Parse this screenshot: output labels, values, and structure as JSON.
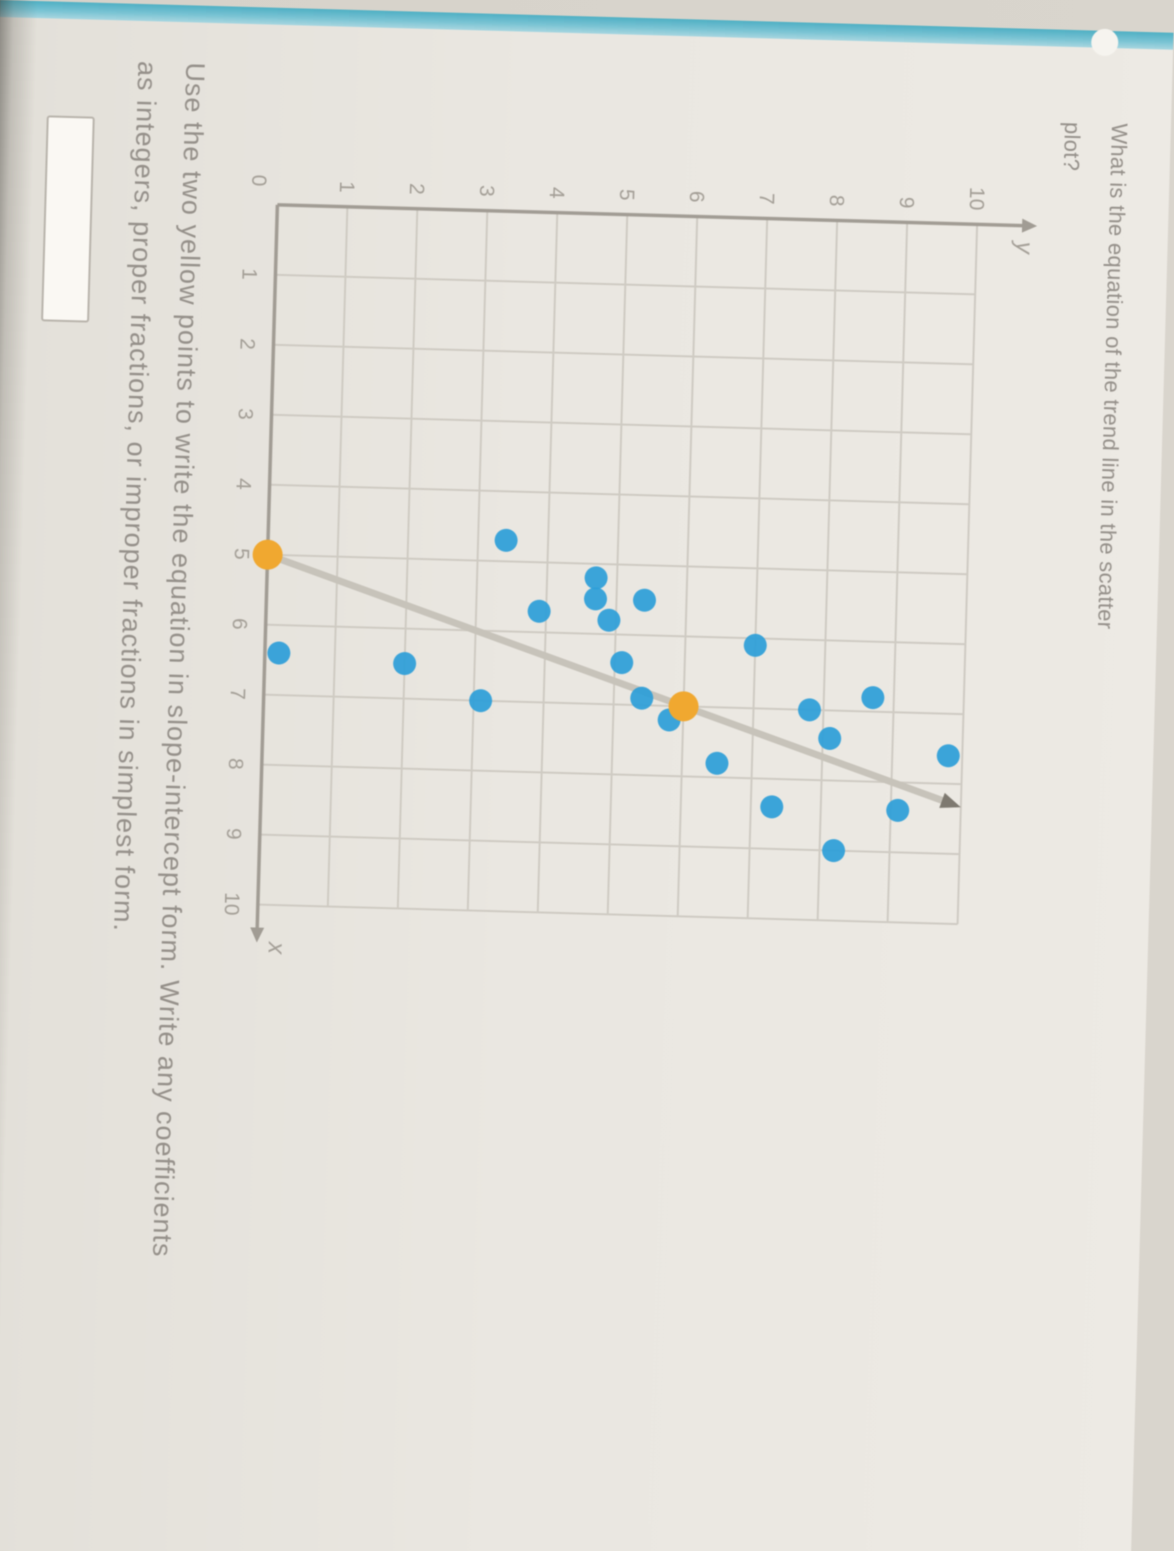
{
  "screen": {
    "edge_strip_color": "#58b4c8",
    "corner_dot_color": "#f6f4ef",
    "background_color": "#eae7e1"
  },
  "question": {
    "text": "What is the equation of the trend line in the scatter plot?"
  },
  "instructions": {
    "line1": "Use the two yellow points to write the equation in slope-intercept form. Write any coefficients",
    "line2": "as integers, proper fractions, or improper fractions in simplest form."
  },
  "answer": {
    "value": ""
  },
  "chart_data": {
    "type": "scatter",
    "title": "",
    "xlabel": "x",
    "ylabel": "y",
    "origin_label": "0",
    "xlim": [
      0,
      10
    ],
    "ylim": [
      0,
      10
    ],
    "grid": true,
    "x_ticks": [
      1,
      2,
      3,
      4,
      5,
      6,
      7,
      8,
      9,
      10
    ],
    "y_ticks": [
      1,
      2,
      3,
      4,
      5,
      6,
      7,
      8,
      9,
      10
    ],
    "points": [
      [
        6.4,
        0.2
      ],
      [
        6.5,
        2.0
      ],
      [
        7.0,
        3.1
      ],
      [
        5.7,
        3.9
      ],
      [
        5.2,
        4.7
      ],
      [
        5.5,
        4.7
      ],
      [
        5.8,
        4.9
      ],
      [
        5.5,
        5.4
      ],
      [
        6.4,
        5.1
      ],
      [
        6.9,
        5.4
      ],
      [
        7.2,
        5.8
      ],
      [
        4.7,
        3.4
      ],
      [
        6.1,
        7.0
      ],
      [
        7.0,
        7.8
      ],
      [
        7.8,
        6.5
      ],
      [
        8.4,
        7.3
      ],
      [
        7.6,
        9.8
      ],
      [
        8.4,
        9.1
      ],
      [
        6.8,
        8.7
      ],
      [
        7.4,
        8.1
      ],
      [
        9.0,
        8.2
      ]
    ],
    "yellow_points": [
      [
        5,
        0
      ],
      [
        7,
        6
      ]
    ],
    "trend_line": {
      "from": [
        5,
        0
      ],
      "to": [
        8.33,
        10
      ],
      "slope": 3,
      "intercept": -15
    },
    "colors": {
      "point": "#2d9ed8",
      "yellow_point": "#f0a830",
      "trend": "#c7c3ba",
      "trend_arrow": "#7e7970",
      "grid_line": "#cfcbc3",
      "axis": "#a19c94",
      "tick_text": "#a49f97"
    }
  }
}
